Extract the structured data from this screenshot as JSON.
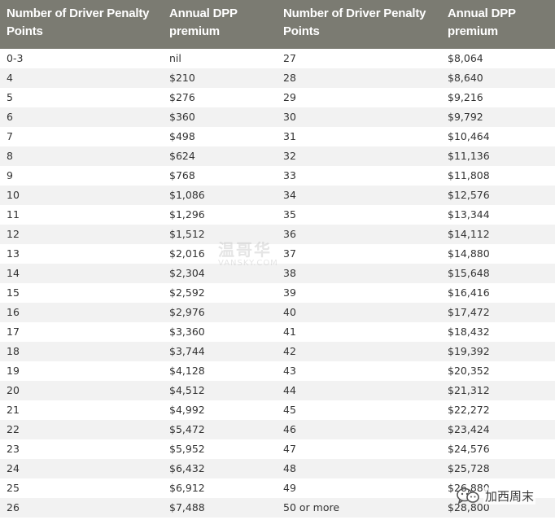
{
  "table": {
    "headers": [
      "Number of Driver Penalty\nPoints",
      "Annual DPP\npremium",
      "Number of Driver Penalty\nPoints",
      "Annual DPP\npremium"
    ],
    "rows": [
      [
        "0-3",
        "nil",
        "27",
        "$8,064"
      ],
      [
        "4",
        "$210",
        "28",
        "$8,640"
      ],
      [
        "5",
        "$276",
        "29",
        "$9,216"
      ],
      [
        "6",
        "$360",
        "30",
        "$9,792"
      ],
      [
        "7",
        "$498",
        "31",
        "$10,464"
      ],
      [
        "8",
        "$624",
        "32",
        "$11,136"
      ],
      [
        "9",
        "$768",
        "33",
        "$11,808"
      ],
      [
        "10",
        "$1,086",
        "34",
        "$12,576"
      ],
      [
        "11",
        "$1,296",
        "35",
        "$13,344"
      ],
      [
        "12",
        "$1,512",
        "36",
        "$14,112"
      ],
      [
        "13",
        "$2,016",
        "37",
        "$14,880"
      ],
      [
        "14",
        "$2,304",
        "38",
        "$15,648"
      ],
      [
        "15",
        "$2,592",
        "39",
        "$16,416"
      ],
      [
        "16",
        "$2,976",
        "40",
        "$17,472"
      ],
      [
        "17",
        "$3,360",
        "41",
        "$18,432"
      ],
      [
        "18",
        "$3,744",
        "42",
        "$19,392"
      ],
      [
        "19",
        "$4,128",
        "43",
        "$20,352"
      ],
      [
        "20",
        "$4,512",
        "44",
        "$21,312"
      ],
      [
        "21",
        "$4,992",
        "45",
        "$22,272"
      ],
      [
        "22",
        "$5,472",
        "46",
        "$23,424"
      ],
      [
        "23",
        "$5,952",
        "47",
        "$24,576"
      ],
      [
        "24",
        "$6,432",
        "48",
        "$25,728"
      ],
      [
        "25",
        "$6,912",
        "49",
        "$26,880"
      ],
      [
        "26",
        "$7,488",
        "50 or more",
        "$28,800"
      ]
    ]
  },
  "watermark": {
    "main": "温哥华",
    "sub": "VANSKY.COM"
  },
  "badge": {
    "text": "加西周末",
    "icon": "wechat-icon"
  },
  "colors": {
    "header_bg": "#7b7b72",
    "header_text": "#ffffff",
    "row_alt": "#f2f2f2",
    "text": "#333333"
  }
}
